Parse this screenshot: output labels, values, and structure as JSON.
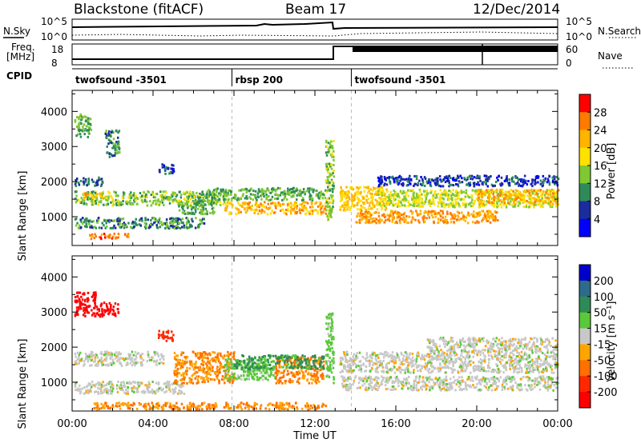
{
  "header": {
    "station": "Blackstone (fitACF)",
    "beam": "Beam 17",
    "date": "12/Dec/2014"
  },
  "strip_labels": {
    "nsky": "N.Sky",
    "nsky_ticks": [
      "10^5",
      "10^0"
    ],
    "nsearch": "N.Search",
    "nsearch_ticks": [
      "10^5",
      "10^0"
    ],
    "freq": "Freq.",
    "freq_unit": "[MHz]",
    "freq_ticks": [
      "18",
      "8"
    ],
    "nave": "Nave",
    "nave_ticks": [
      "60",
      "0"
    ],
    "cpid": "CPID"
  },
  "cpid_segments": [
    {
      "label": "twofsound -3501",
      "start_hour": 0,
      "end_hour": 7.9
    },
    {
      "label": "rbsp 200",
      "start_hour": 7.9,
      "end_hour": 13.8
    },
    {
      "label": "twofsound -3501",
      "start_hour": 13.8,
      "end_hour": 24
    }
  ],
  "axes": {
    "ylabel": "Slant Range [km]",
    "xlabel": "Time UT",
    "x_ticks": [
      "00:00",
      "04:00",
      "08:00",
      "12:00",
      "16:00",
      "20:00",
      "00:00"
    ],
    "y_ticks": [
      "1000",
      "2000",
      "3000",
      "4000"
    ],
    "x_range_hours": [
      0,
      24
    ],
    "y_range_km": [
      180,
      4600
    ]
  },
  "power_scale": {
    "label": "Power [dB]",
    "ticks": [
      "28",
      "24",
      "20",
      "16",
      "12",
      "8",
      "4"
    ],
    "colors": [
      "#ff0000",
      "#ff7a00",
      "#ffb400",
      "#ffe100",
      "#7fc832",
      "#2e8b57",
      "#1b2c9f",
      "#0000ff"
    ]
  },
  "velocity_scale": {
    "label": "Velocity [m s⁻¹]",
    "ticks": [
      "200",
      "100",
      "50",
      "15",
      "-15",
      "-50",
      "-100",
      "-200"
    ],
    "colors": [
      "#0000cc",
      "#2e6b8a",
      "#2e8b57",
      "#5ac83a",
      "#c8c8c8",
      "#ffa500",
      "#ff7000",
      "#ff2800",
      "#ff0000"
    ]
  },
  "chart_data": [
    {
      "type": "heatmap",
      "title": "Power",
      "xlabel": "Time UT",
      "ylabel": "Slant Range [km]",
      "xlim": [
        0,
        24
      ],
      "ylim": [
        180,
        4600
      ],
      "colorbar": {
        "label": "Power [dB]",
        "range": [
          0,
          30
        ]
      },
      "bands": [
        {
          "t0": 0.1,
          "t1": 0.9,
          "r0": 3300,
          "r1": 3950,
          "value": 12
        },
        {
          "t0": 1.6,
          "t1": 2.3,
          "r0": 2700,
          "r1": 3500,
          "value": 10
        },
        {
          "t0": 0.1,
          "t1": 1.5,
          "r0": 1900,
          "r1": 2150,
          "value": 8
        },
        {
          "t0": 0.1,
          "t1": 7.5,
          "r0": 1350,
          "r1": 1750,
          "value": 14
        },
        {
          "t0": 0.5,
          "t1": 1.5,
          "r0": 1550,
          "r1": 1700,
          "value": 22
        },
        {
          "t0": 0.8,
          "t1": 2.8,
          "r0": 400,
          "r1": 550,
          "value": 26
        },
        {
          "t0": 0.1,
          "t1": 6.5,
          "r0": 700,
          "r1": 1000,
          "value": 10
        },
        {
          "t0": 4.2,
          "t1": 5.0,
          "r0": 2250,
          "r1": 2550,
          "value": 6
        },
        {
          "t0": 5.2,
          "t1": 7.0,
          "r0": 1100,
          "r1": 1500,
          "value": 12
        },
        {
          "t0": 6.5,
          "t1": 12.5,
          "r0": 1500,
          "r1": 1850,
          "value": 12
        },
        {
          "t0": 7.5,
          "t1": 12.5,
          "r0": 1100,
          "r1": 1450,
          "value": 22
        },
        {
          "t0": 12.5,
          "t1": 12.9,
          "r0": 900,
          "r1": 3200,
          "value": 14
        },
        {
          "t0": 13.2,
          "t1": 15.5,
          "r0": 1200,
          "r1": 1900,
          "value": 20
        },
        {
          "t0": 14.0,
          "t1": 21.0,
          "r0": 850,
          "r1": 1200,
          "value": 24
        },
        {
          "t0": 15.0,
          "t1": 24.0,
          "r0": 1300,
          "r1": 1800,
          "value": 16
        },
        {
          "t0": 20.0,
          "t1": 24.0,
          "r0": 1400,
          "r1": 1800,
          "value": 22
        },
        {
          "t0": 15.0,
          "t1": 24.0,
          "r0": 1900,
          "r1": 2200,
          "value": 6
        }
      ]
    },
    {
      "type": "heatmap",
      "title": "Velocity",
      "xlabel": "Time UT",
      "ylabel": "Slant Range [km]",
      "xlim": [
        0,
        24
      ],
      "ylim": [
        180,
        4600
      ],
      "colorbar": {
        "label": "Velocity [m s⁻¹]",
        "range": [
          -250,
          250
        ]
      },
      "bands": [
        {
          "t0": 0.1,
          "t1": 1.2,
          "r0": 2900,
          "r1": 3600,
          "value": -220
        },
        {
          "t0": 1.2,
          "t1": 2.3,
          "r0": 2900,
          "r1": 3300,
          "value": -220
        },
        {
          "t0": 0.1,
          "t1": 4.5,
          "r0": 1500,
          "r1": 1900,
          "value": 0
        },
        {
          "t0": 0.1,
          "t1": 5.5,
          "r0": 700,
          "r1": 1050,
          "value": 0
        },
        {
          "t0": 4.2,
          "t1": 5.0,
          "r0": 2200,
          "r1": 2500,
          "value": -120
        },
        {
          "t0": 5.0,
          "t1": 8.0,
          "r0": 1000,
          "r1": 1900,
          "value": -50
        },
        {
          "t0": 7.5,
          "t1": 10.0,
          "r0": 1100,
          "r1": 1700,
          "value": 30
        },
        {
          "t0": 10.0,
          "t1": 12.4,
          "r0": 1000,
          "r1": 1750,
          "value": -60
        },
        {
          "t0": 8.0,
          "t1": 12.4,
          "r0": 1400,
          "r1": 1800,
          "value": 60
        },
        {
          "t0": 1.0,
          "t1": 12.5,
          "r0": 250,
          "r1": 450,
          "value": -50
        },
        {
          "t0": 12.5,
          "t1": 12.9,
          "r0": 1000,
          "r1": 3000,
          "value": 30
        },
        {
          "t0": 13.2,
          "t1": 24.0,
          "r0": 800,
          "r1": 1200,
          "value": 0
        },
        {
          "t0": 13.2,
          "t1": 24.0,
          "r0": 1300,
          "r1": 1900,
          "value": 0
        },
        {
          "t0": 17.5,
          "t1": 24.0,
          "r0": 1900,
          "r1": 2300,
          "value": 0
        }
      ]
    }
  ]
}
